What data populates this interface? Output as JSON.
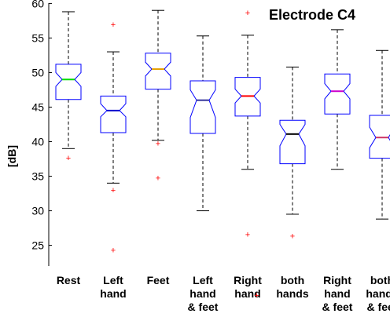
{
  "chart_data": {
    "type": "boxplot",
    "title": "Electrode C4",
    "ylabel": "[dB]",
    "xlabel": "",
    "ylim": [
      22,
      60.5
    ],
    "yticks": [
      25,
      30,
      35,
      40,
      45,
      50,
      55,
      60
    ],
    "notched": true,
    "grid": false,
    "categories": [
      [
        "Rest"
      ],
      [
        "Left",
        "hand"
      ],
      [
        "Feet"
      ],
      [
        "Left",
        "hand",
        "& feet"
      ],
      [
        "Right",
        "hand"
      ],
      [
        "both",
        "hands"
      ],
      [
        "Right",
        "hand",
        "& feet"
      ],
      [
        "both",
        "hands",
        "& feet"
      ]
    ],
    "boxes": [
      {
        "whisker_low": 39.0,
        "q1": 46.1,
        "median": 49.0,
        "q3": 51.2,
        "whisker_high": 58.8,
        "notch_low": 48.0,
        "notch_high": 50.0,
        "outliers": [
          37.7
        ],
        "median_color": "#00dd00"
      },
      {
        "whisker_low": 34.0,
        "q1": 41.3,
        "median": 44.5,
        "q3": 46.6,
        "whisker_high": 53.0,
        "notch_low": 43.6,
        "notch_high": 45.5,
        "outliers": [
          57.0,
          33.0,
          24.3
        ],
        "median_color": "#0000cc"
      },
      {
        "whisker_low": 40.2,
        "q1": 47.6,
        "median": 50.5,
        "q3": 52.8,
        "whisker_high": 59.0,
        "notch_low": 49.5,
        "notch_high": 51.5,
        "outliers": [
          39.8,
          34.8
        ],
        "median_color": "#e6a000"
      },
      {
        "whisker_low": 30.0,
        "q1": 41.2,
        "median": 46.0,
        "q3": 48.8,
        "whisker_high": 55.3,
        "notch_low": 43.5,
        "notch_high": 47.5,
        "outliers": [],
        "median_color": "#333399"
      },
      {
        "whisker_low": 36.0,
        "q1": 43.7,
        "median": 46.6,
        "q3": 49.3,
        "whisker_high": 55.4,
        "notch_low": 45.6,
        "notch_high": 47.6,
        "outliers": [
          58.7,
          26.6
        ],
        "median_color": "#ff0000"
      },
      {
        "whisker_low": 29.5,
        "q1": 36.8,
        "median": 41.1,
        "q3": 43.1,
        "whisker_high": 50.8,
        "notch_low": 39.4,
        "notch_high": 42.5,
        "outliers": [
          26.4
        ],
        "median_color": "#000000"
      },
      {
        "whisker_low": 36.0,
        "q1": 44.0,
        "median": 47.3,
        "q3": 49.8,
        "whisker_high": 56.2,
        "notch_low": 46.2,
        "notch_high": 48.4,
        "outliers": [],
        "median_color": "#cc00cc"
      },
      {
        "whisker_low": 28.8,
        "q1": 37.6,
        "median": 40.6,
        "q3": 43.8,
        "whisker_high": 53.2,
        "notch_low": 39.1,
        "notch_high": 42.1,
        "outliers": [],
        "median_color": "#cc3366"
      }
    ],
    "extra_marks": [
      {
        "label": "+",
        "category_index": 4,
        "x_offset": 0.6,
        "y_below_axis": true
      }
    ],
    "colors": {
      "box": "#0000ff",
      "whisker": "#000000",
      "outlier": "#ff0000",
      "axis": "#000000"
    }
  }
}
